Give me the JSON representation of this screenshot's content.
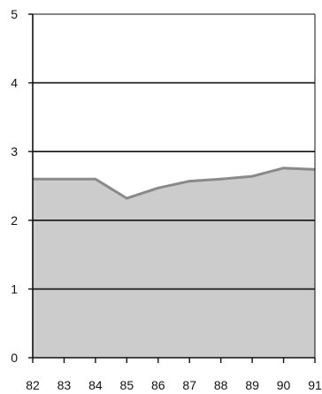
{
  "chart_data": {
    "type": "area",
    "x": [
      82,
      83,
      84,
      85,
      86,
      87,
      88,
      89,
      90,
      91
    ],
    "x_tick_labels": [
      "82",
      "83",
      "84",
      "85",
      "86",
      "87",
      "88",
      "89",
      "90",
      "91"
    ],
    "y": [
      2.6,
      2.6,
      2.6,
      2.32,
      2.47,
      2.57,
      2.6,
      2.64,
      2.76,
      2.74
    ],
    "y_tick_labels": [
      "0",
      "1",
      "2",
      "3",
      "4",
      "5"
    ],
    "xlim": [
      82,
      91
    ],
    "ylim": [
      0,
      5
    ],
    "grid": "horizontal",
    "title": "",
    "xlabel": "",
    "ylabel": "",
    "colors": {
      "fill": "#cccccc",
      "line": "#8a8a8a",
      "gridline": "#111111",
      "frame": "#111111"
    }
  }
}
